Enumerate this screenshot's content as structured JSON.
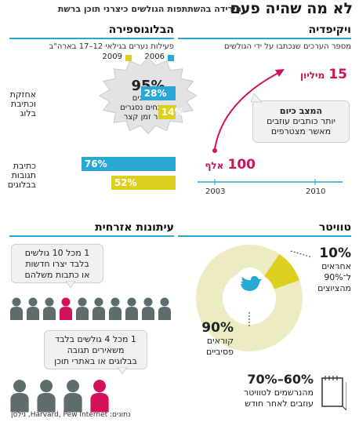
{
  "header": {
    "title": "לא מה שהיה פעם",
    "subtitle": "הירידה בהשתתפות הגולשים כיצרני תוכן ברשת"
  },
  "colors": {
    "blue": "#2aa8d4",
    "yellow": "#dccf1e",
    "magenta": "#d0115a",
    "gray": "#5d6d6d",
    "cream": "#ecebc2",
    "rule": "#2aa8d4"
  },
  "wikipedia": {
    "title": "ויקיפדיה",
    "subtitle": "מספר הערכים שנכתבו על ידי הגולשים",
    "value_end": "15",
    "value_end_unit": "מיליון",
    "value_start": "100",
    "value_start_unit": "אלף",
    "callout_title": "המצב כיום",
    "callout_line1": "יותר כותבים עוזבים",
    "callout_line2": "מאשר מצטרפים",
    "year_start": "2003",
    "year_end": "2010"
  },
  "blogosphere": {
    "title": "הבלוגוספירה",
    "subtitle": "פעילות נערים בגילאי 12–17 בארה\"ב",
    "legend": [
      {
        "year": "2006",
        "color": "#2aa8d4"
      },
      {
        "year": "2009",
        "color": "#dccf1e"
      }
    ],
    "burst_value": "95%",
    "burst_line1": "מהבלוגים",
    "burst_line2": "שנפתחים נסגרים",
    "burst_line3": "לאחר זמן קצר"
  },
  "chart_data": {
    "type": "bar",
    "title": "פעילות נערים בגילאי 12–17 בארה\"ב",
    "categories": [
      "אחזקת וכתיבת בלוג",
      "כתיבת תגובות בבלוגים"
    ],
    "series": [
      {
        "name": "2006",
        "values": [
          28,
          76
        ],
        "labels": [
          "28%",
          "76%"
        ],
        "color": "#2aa8d4"
      },
      {
        "name": "2009",
        "values": [
          14,
          52
        ],
        "labels": [
          "14%",
          "52%"
        ],
        "color": "#dccf1e"
      }
    ],
    "xlim": [
      0,
      100
    ]
  },
  "categories_display": {
    "cat1_line1": "אחזקת",
    "cat1_line2": "וכתיבת",
    "cat1_line3": "בלוג",
    "cat2_line1": "כתיבת",
    "cat2_line2": "תגובות",
    "cat2_line3": "בבלוגים"
  },
  "journalism": {
    "title": "עיתונות אזרחית",
    "bubble1_line1": "1 מכל 10 גולשים",
    "bubble1_line2": "בלבד יצרו חדשות",
    "bubble1_line3": "או כתבות משלהם",
    "bubble2_line1": "1 מכל 4 גולשים בלבד",
    "bubble2_line2": "משאירים תגובה",
    "bubble2_line3": "בבלוגים או באתרי תוכן",
    "row1_people": 10,
    "row1_highlight": 1,
    "row2_people": 4,
    "row2_highlight": 1
  },
  "twitter": {
    "title": "טוויטר",
    "active_pct": "10%",
    "active_line1": "אחראים",
    "active_line2": "ל־90%",
    "active_line3": "מהציוצים",
    "passive_pct": "90%",
    "passive_line1": "קוראים",
    "passive_line2": "פסיביים",
    "quit_pct": "70%–60%",
    "quit_line1": "מהנרשמים לטוויטר",
    "quit_line2": "עוזבים לאחר חודש",
    "active_fraction": 0.1
  },
  "footer": {
    "source": "נתונים: Harvard, Pew Internet, נילסן"
  }
}
